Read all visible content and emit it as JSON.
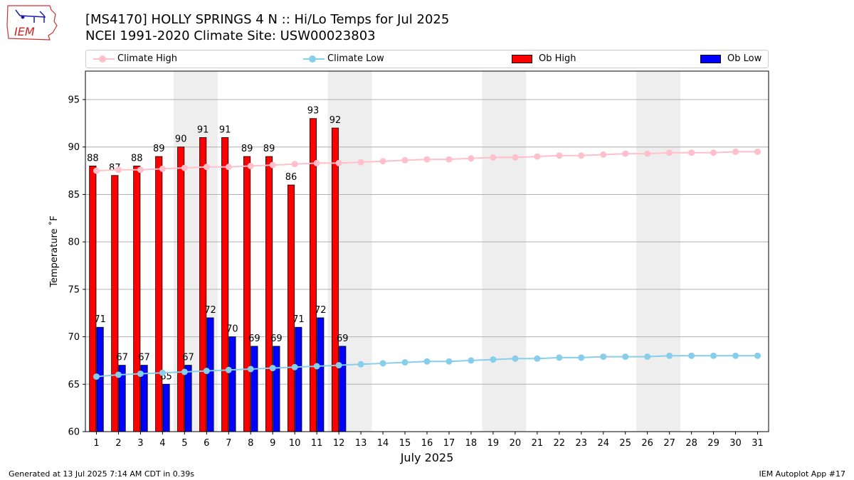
{
  "header": {
    "logo_text": "IEM",
    "title_line1": "[MS4170] HOLLY SPRINGS 4 N :: Hi/Lo Temps for Jul 2025",
    "title_line2": "NCEI 1991-2020 Climate Site: USW00023803"
  },
  "legend": {
    "climate_high": "Climate High",
    "climate_low": "Climate Low",
    "ob_high": "Ob High",
    "ob_low": "Ob Low"
  },
  "colors": {
    "climate_high": "#ffc0cb",
    "climate_low": "#87ceeb",
    "ob_high": "#ff0000",
    "ob_low": "#0000ff",
    "weekend_band": "#eeeeee",
    "grid": "#b0b0b0"
  },
  "footer": {
    "generated": "Generated at 13 Jul 2025 7:14 AM CDT in 0.39s",
    "app": "IEM Autoplot App #17"
  },
  "chart_data": {
    "type": "bar",
    "xlabel": "July 2025",
    "ylabel": "Temperature ˚F",
    "ylim": [
      60,
      98
    ],
    "xlim": [
      0.5,
      31.5
    ],
    "yticks": [
      60,
      65,
      70,
      75,
      80,
      85,
      90,
      95
    ],
    "x": [
      1,
      2,
      3,
      4,
      5,
      6,
      7,
      8,
      9,
      10,
      11,
      12,
      13,
      14,
      15,
      16,
      17,
      18,
      19,
      20,
      21,
      22,
      23,
      24,
      25,
      26,
      27,
      28,
      29,
      30,
      31
    ],
    "weekend_bands": [
      [
        5,
        6
      ],
      [
        12,
        13
      ],
      [
        19,
        20
      ],
      [
        26,
        27
      ]
    ],
    "grid": "y",
    "legend_position": "top",
    "series": [
      {
        "name": "Ob High",
        "kind": "bar",
        "x": [
          1,
          2,
          3,
          4,
          5,
          6,
          7,
          8,
          9,
          10,
          11,
          12
        ],
        "values": [
          88,
          87,
          88,
          89,
          90,
          91,
          91,
          89,
          89,
          86,
          93,
          92
        ]
      },
      {
        "name": "Ob Low",
        "kind": "bar",
        "x": [
          1,
          2,
          3,
          4,
          5,
          6,
          7,
          8,
          9,
          10,
          11,
          12
        ],
        "values": [
          71,
          67,
          67,
          65,
          67,
          72,
          70,
          69,
          69,
          71,
          72,
          69
        ]
      },
      {
        "name": "Climate High",
        "kind": "line",
        "values": [
          87.5,
          87.6,
          87.6,
          87.7,
          87.8,
          87.9,
          87.9,
          88.0,
          88.1,
          88.2,
          88.3,
          88.3,
          88.4,
          88.5,
          88.6,
          88.7,
          88.7,
          88.8,
          88.9,
          88.9,
          89.0,
          89.1,
          89.1,
          89.2,
          89.3,
          89.3,
          89.4,
          89.4,
          89.4,
          89.5,
          89.5
        ]
      },
      {
        "name": "Climate Low",
        "kind": "line",
        "values": [
          65.8,
          66.0,
          66.1,
          66.2,
          66.3,
          66.4,
          66.5,
          66.6,
          66.7,
          66.8,
          66.9,
          67.0,
          67.1,
          67.2,
          67.3,
          67.4,
          67.4,
          67.5,
          67.6,
          67.7,
          67.7,
          67.8,
          67.8,
          67.9,
          67.9,
          67.9,
          68.0,
          68.0,
          68.0,
          68.0,
          68.0
        ]
      }
    ]
  }
}
